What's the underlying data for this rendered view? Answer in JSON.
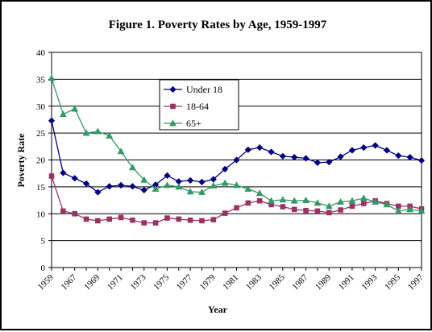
{
  "chart_data": {
    "type": "line",
    "title": "Figure 1. Poverty Rates by Age, 1959-1997",
    "xlabel": "Year",
    "ylabel": "Poverty Rate",
    "ylim": [
      0,
      40
    ],
    "yticks": [
      0,
      5,
      10,
      15,
      20,
      25,
      30,
      35,
      40
    ],
    "grid": "horizontal",
    "legend_position": "upper-center",
    "x": [
      1959,
      1966,
      1967,
      1968,
      1969,
      1970,
      1971,
      1972,
      1973,
      1974,
      1975,
      1976,
      1977,
      1978,
      1979,
      1980,
      1981,
      1982,
      1983,
      1984,
      1985,
      1986,
      1987,
      1988,
      1989,
      1990,
      1991,
      1992,
      1993,
      1994,
      1995,
      1996,
      1997
    ],
    "x_tick_labels": [
      "1959",
      "1967",
      "1969",
      "1971",
      "1973",
      "1975",
      "1977",
      "1979",
      "1981",
      "1983",
      "1985",
      "1987",
      "1989",
      "1991",
      "1993",
      "1995",
      "1997"
    ],
    "series": [
      {
        "name": "Under 18",
        "color": "#000080",
        "marker": "diamond",
        "values": [
          27.3,
          17.6,
          16.6,
          15.6,
          14.0,
          15.1,
          15.3,
          15.1,
          14.4,
          15.4,
          17.1,
          16.0,
          16.2,
          15.9,
          16.4,
          18.3,
          20.0,
          21.9,
          22.3,
          21.5,
          20.7,
          20.5,
          20.3,
          19.5,
          19.6,
          20.6,
          21.8,
          22.3,
          22.7,
          21.8,
          20.8,
          20.5,
          19.9
        ]
      },
      {
        "name": "18-64",
        "color": "#993366",
        "marker": "square",
        "values": [
          17.0,
          10.5,
          10.0,
          9.0,
          8.7,
          9.0,
          9.3,
          8.8,
          8.3,
          8.3,
          9.2,
          9.0,
          8.8,
          8.7,
          8.9,
          10.1,
          11.1,
          12.0,
          12.4,
          11.7,
          11.3,
          10.8,
          10.6,
          10.5,
          10.2,
          10.7,
          11.4,
          11.9,
          12.4,
          11.9,
          11.4,
          11.4,
          10.9
        ]
      },
      {
        "name": "65+",
        "color": "#339966",
        "marker": "triangle",
        "values": [
          35.2,
          28.5,
          29.5,
          25.0,
          25.3,
          24.5,
          21.6,
          18.6,
          16.3,
          14.6,
          15.3,
          15.0,
          14.1,
          14.0,
          15.2,
          15.7,
          15.3,
          14.6,
          13.8,
          12.4,
          12.6,
          12.4,
          12.5,
          12.0,
          11.4,
          12.2,
          12.4,
          12.9,
          12.2,
          11.7,
          10.5,
          10.8,
          10.5
        ]
      }
    ]
  }
}
